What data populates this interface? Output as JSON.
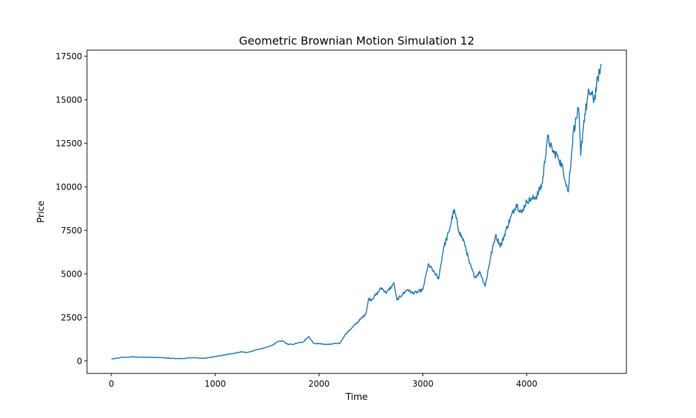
{
  "chart_data": {
    "type": "line",
    "title": "Geometric Brownian Motion Simulation 12",
    "xlabel": "Time",
    "ylabel": "Price",
    "xlim": [
      -235,
      4960
    ],
    "ylim": [
      -720,
      17850
    ],
    "x_ticks": [
      0,
      1000,
      2000,
      3000,
      4000
    ],
    "y_ticks": [
      0,
      2500,
      5000,
      7500,
      10000,
      12500,
      15000,
      17500
    ],
    "x_tick_labels": [
      "0",
      "1000",
      "2000",
      "3000",
      "4000"
    ],
    "y_tick_labels": [
      "0",
      "2500",
      "5000",
      "7500",
      "10000",
      "12500",
      "15000",
      "17500"
    ],
    "grid": false,
    "series": [
      {
        "color": "#1f77b4",
        "x": [
          0,
          50,
          100,
          150,
          200,
          250,
          300,
          350,
          400,
          450,
          500,
          550,
          600,
          650,
          700,
          750,
          800,
          850,
          900,
          950,
          1000,
          1050,
          1100,
          1150,
          1200,
          1250,
          1300,
          1350,
          1400,
          1450,
          1500,
          1550,
          1600,
          1650,
          1700,
          1750,
          1800,
          1850,
          1900,
          1950,
          2000,
          2050,
          2100,
          2150,
          2200,
          2250,
          2300,
          2350,
          2400,
          2450,
          2480,
          2500,
          2550,
          2600,
          2650,
          2700,
          2720,
          2750,
          2800,
          2850,
          2900,
          2950,
          3000,
          3050,
          3100,
          3150,
          3200,
          3250,
          3300,
          3350,
          3400,
          3450,
          3500,
          3550,
          3600,
          3650,
          3700,
          3750,
          3800,
          3850,
          3900,
          3950,
          4000,
          4050,
          4100,
          4150,
          4200,
          4250,
          4300,
          4350,
          4400,
          4450,
          4500,
          4520,
          4550,
          4600,
          4650,
          4700,
          4720
        ],
        "y": [
          100,
          150,
          200,
          210,
          230,
          220,
          215,
          205,
          200,
          190,
          180,
          160,
          140,
          130,
          140,
          170,
          190,
          160,
          150,
          200,
          250,
          300,
          350,
          400,
          450,
          520,
          480,
          550,
          650,
          700,
          800,
          900,
          1100,
          1150,
          950,
          950,
          1050,
          1100,
          1400,
          1000,
          1000,
          950,
          950,
          1000,
          1000,
          1500,
          1800,
          2100,
          2400,
          2700,
          3600,
          3500,
          3800,
          4200,
          3900,
          4300,
          4500,
          3500,
          3800,
          4100,
          3900,
          3950,
          4100,
          5500,
          5200,
          4700,
          6500,
          7400,
          8700,
          7400,
          6800,
          5600,
          4800,
          5100,
          4300,
          5900,
          7200,
          6600,
          7500,
          8300,
          9000,
          8500,
          9200,
          9300,
          9500,
          10200,
          12900,
          12000,
          11800,
          11000,
          9700,
          13200,
          14500,
          11800,
          13800,
          15500,
          15000,
          16700,
          17000
        ]
      }
    ]
  }
}
